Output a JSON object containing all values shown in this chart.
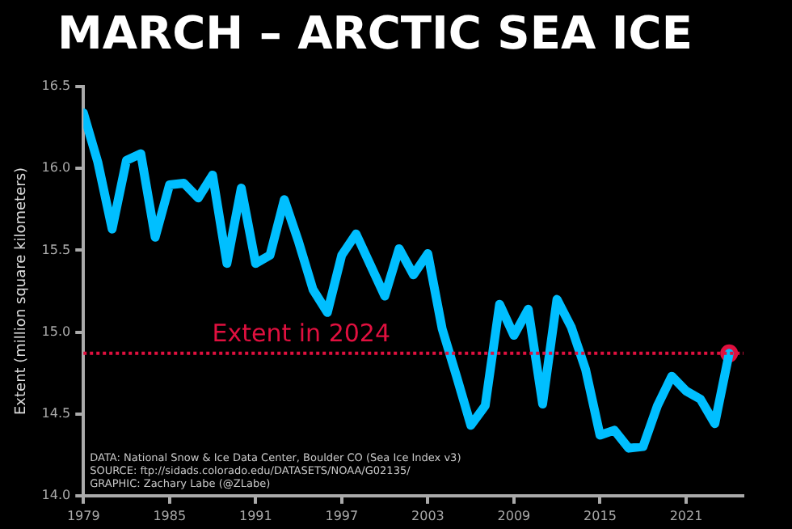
{
  "chart_data": {
    "type": "line",
    "title": "MARCH – ARCTIC SEA ICE",
    "ylabel": "Extent (million square kilometers)",
    "x": [
      1979,
      1980,
      1981,
      1982,
      1983,
      1984,
      1985,
      1986,
      1987,
      1988,
      1989,
      1990,
      1991,
      1992,
      1993,
      1994,
      1995,
      1996,
      1997,
      1998,
      1999,
      2000,
      2001,
      2002,
      2003,
      2004,
      2005,
      2006,
      2007,
      2008,
      2009,
      2010,
      2011,
      2012,
      2013,
      2014,
      2015,
      2016,
      2017,
      2018,
      2019,
      2020,
      2021,
      2022,
      2023,
      2024
    ],
    "series": [
      {
        "type": "line",
        "color": "#00bfff",
        "values": [
          16.34,
          16.04,
          15.63,
          16.05,
          16.09,
          15.58,
          15.9,
          15.91,
          15.82,
          15.96,
          15.42,
          15.88,
          15.42,
          15.47,
          15.81,
          15.55,
          15.26,
          15.12,
          15.47,
          15.6,
          15.41,
          15.22,
          15.51,
          15.35,
          15.48,
          15.02,
          14.73,
          14.43,
          14.55,
          15.17,
          14.98,
          15.14,
          14.56,
          15.2,
          15.03,
          14.77,
          14.37,
          14.4,
          14.29,
          14.3,
          14.55,
          14.73,
          14.64,
          14.59,
          14.44,
          14.87
        ]
      },
      {
        "type": "scatter",
        "color": "#e0103f",
        "x": [
          2024
        ],
        "values": [
          14.87
        ]
      }
    ],
    "xlim": [
      1979,
      2025
    ],
    "xticks": [
      1979,
      1985,
      1991,
      1997,
      2003,
      2009,
      2015,
      2021
    ],
    "ylim": [
      14,
      16.5
    ],
    "yticks": [
      {
        "value": 14,
        "label": "14.0"
      },
      {
        "value": 14.5,
        "label": "14.5"
      },
      {
        "value": 15,
        "label": "15.0"
      },
      {
        "value": 15.5,
        "label": "15.5"
      },
      {
        "value": 16,
        "label": "16.0"
      },
      {
        "value": 16.5,
        "label": "16.5"
      }
    ],
    "ref_lines": [
      {
        "axis": "y",
        "value": 14.87,
        "label": "Extent in 2024",
        "color": "#e0103f",
        "line_style": "dotted"
      }
    ],
    "annotations": [
      "DATA: National Snow & Ice Data Center, Boulder CO (Sea Ice Index v3)",
      "SOURCE: ftp://sidads.colorado.edu/DATASETS/NOAA/G02135/",
      "GRAPHIC: Zachary Labe (@ZLabe)"
    ],
    "grid": false,
    "legend": false
  }
}
